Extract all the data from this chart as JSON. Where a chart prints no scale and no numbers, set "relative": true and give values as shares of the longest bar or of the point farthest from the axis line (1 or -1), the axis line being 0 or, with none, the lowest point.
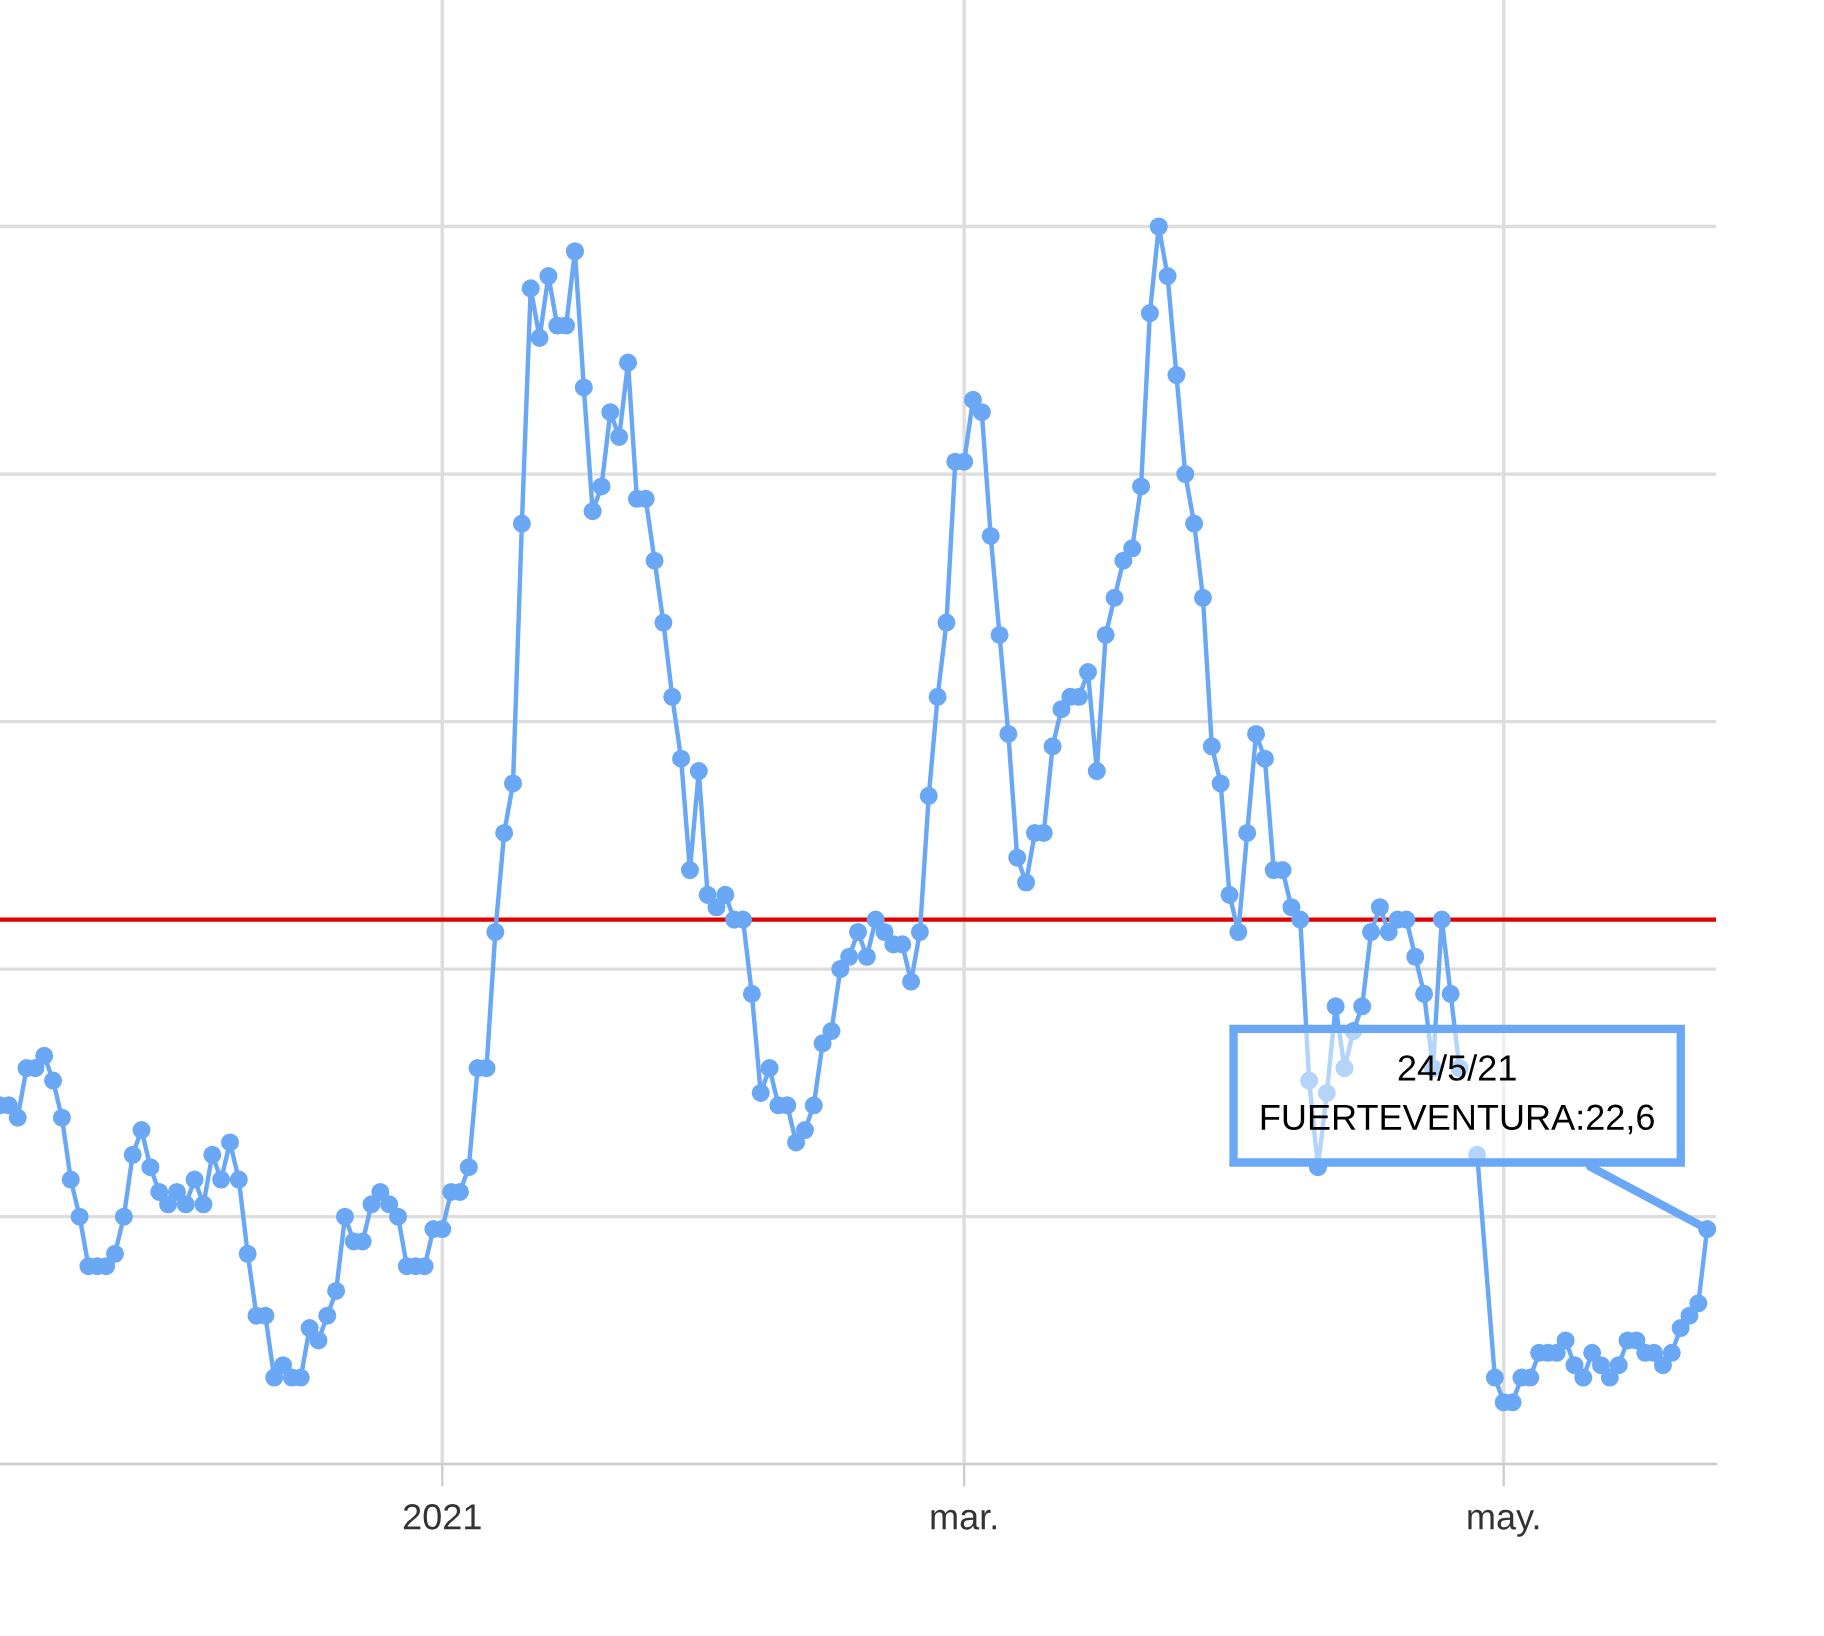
{
  "chart_data": {
    "type": "line",
    "relative": true,
    "x": [
      "2020-11-12",
      "2020-11-13",
      "2020-11-14",
      "2020-11-15",
      "2020-11-16",
      "2020-11-17",
      "2020-11-18",
      "2020-11-19",
      "2020-11-20",
      "2020-11-21",
      "2020-11-22",
      "2020-11-23",
      "2020-11-24",
      "2020-11-25",
      "2020-11-26",
      "2020-11-27",
      "2020-11-28",
      "2020-11-29",
      "2020-11-30",
      "2020-12-01",
      "2020-12-02",
      "2020-12-03",
      "2020-12-04",
      "2020-12-05",
      "2020-12-06",
      "2020-12-07",
      "2020-12-08",
      "2020-12-09",
      "2020-12-10",
      "2020-12-11",
      "2020-12-12",
      "2020-12-13",
      "2020-12-14",
      "2020-12-15",
      "2020-12-16",
      "2020-12-17",
      "2020-12-18",
      "2020-12-19",
      "2020-12-20",
      "2020-12-21",
      "2020-12-22",
      "2020-12-23",
      "2020-12-24",
      "2020-12-25",
      "2020-12-26",
      "2020-12-27",
      "2020-12-28",
      "2020-12-29",
      "2020-12-30",
      "2020-12-31",
      "2021-01-01",
      "2021-01-02",
      "2021-01-03",
      "2021-01-04",
      "2021-01-05",
      "2021-01-06",
      "2021-01-07",
      "2021-01-08",
      "2021-01-09",
      "2021-01-10",
      "2021-01-11",
      "2021-01-12",
      "2021-01-13",
      "2021-01-14",
      "2021-01-15",
      "2021-01-16",
      "2021-01-17",
      "2021-01-18",
      "2021-01-19",
      "2021-01-20",
      "2021-01-21",
      "2021-01-22",
      "2021-01-23",
      "2021-01-24",
      "2021-01-25",
      "2021-01-26",
      "2021-01-27",
      "2021-01-28",
      "2021-01-29",
      "2021-01-30",
      "2021-01-31",
      "2021-02-01",
      "2021-02-02",
      "2021-02-03",
      "2021-02-04",
      "2021-02-05",
      "2021-02-06",
      "2021-02-07",
      "2021-02-08",
      "2021-02-09",
      "2021-02-10",
      "2021-02-11",
      "2021-02-12",
      "2021-02-13",
      "2021-02-14",
      "2021-02-15",
      "2021-02-16",
      "2021-02-17",
      "2021-02-18",
      "2021-02-19",
      "2021-02-20",
      "2021-02-21",
      "2021-02-22",
      "2021-02-23",
      "2021-02-24",
      "2021-02-25",
      "2021-02-26",
      "2021-02-27",
      "2021-02-28",
      "2021-03-01",
      "2021-03-02",
      "2021-03-03",
      "2021-03-04",
      "2021-03-05",
      "2021-03-06",
      "2021-03-07",
      "2021-03-08",
      "2021-03-09",
      "2021-03-10",
      "2021-03-11",
      "2021-03-12",
      "2021-03-13",
      "2021-03-14",
      "2021-03-15",
      "2021-03-16",
      "2021-03-17",
      "2021-03-18",
      "2021-03-19",
      "2021-03-20",
      "2021-03-21",
      "2021-03-22",
      "2021-03-23",
      "2021-03-24",
      "2021-03-25",
      "2021-03-26",
      "2021-03-27",
      "2021-03-28",
      "2021-03-29",
      "2021-03-30",
      "2021-03-31",
      "2021-04-01",
      "2021-04-02",
      "2021-04-03",
      "2021-04-04",
      "2021-04-05",
      "2021-04-06",
      "2021-04-07",
      "2021-04-08",
      "2021-04-09",
      "2021-04-10",
      "2021-04-11",
      "2021-04-12",
      "2021-04-13",
      "2021-04-14",
      "2021-04-15",
      "2021-04-16",
      "2021-04-17",
      "2021-04-18",
      "2021-04-19",
      "2021-04-20",
      "2021-04-21",
      "2021-04-22",
      "2021-04-23",
      "2021-04-24",
      "2021-04-25",
      "2021-04-26",
      "2021-04-27",
      "2021-04-28",
      "2021-04-30",
      "2021-05-01",
      "2021-05-02",
      "2021-05-03",
      "2021-05-04",
      "2021-05-05",
      "2021-05-06",
      "2021-05-07",
      "2021-05-08",
      "2021-05-09",
      "2021-05-10",
      "2021-05-11",
      "2021-05-12",
      "2021-05-13",
      "2021-05-14",
      "2021-05-15",
      "2021-05-16",
      "2021-05-17",
      "2021-05-18",
      "2021-05-19",
      "2021-05-20",
      "2021-05-21",
      "2021-05-22",
      "2021-05-23",
      "2021-05-24"
    ],
    "series": [
      {
        "color": "#6aa8f5",
        "values": [
          0.29,
          0.29,
          0.28,
          0.32,
          0.32,
          0.33,
          0.31,
          0.28,
          0.23,
          0.2,
          0.16,
          0.16,
          0.16,
          0.17,
          0.2,
          0.25,
          0.27,
          0.24,
          0.22,
          0.21,
          0.22,
          0.21,
          0.23,
          0.21,
          0.25,
          0.23,
          0.26,
          0.23,
          0.17,
          0.12,
          0.12,
          0.07,
          0.08,
          0.07,
          0.07,
          0.11,
          0.1,
          0.12,
          0.14,
          0.2,
          0.18,
          0.18,
          0.21,
          0.22,
          0.21,
          0.2,
          0.16,
          0.16,
          0.16,
          0.19,
          0.19,
          0.22,
          0.22,
          0.24,
          0.32,
          0.32,
          0.43,
          0.51,
          0.55,
          0.76,
          0.95,
          0.91,
          0.96,
          0.92,
          0.92,
          0.98,
          0.87,
          0.77,
          0.79,
          0.85,
          0.83,
          0.89,
          0.78,
          0.78,
          0.73,
          0.68,
          0.62,
          0.57,
          0.48,
          0.56,
          0.46,
          0.45,
          0.46,
          0.44,
          0.44,
          0.38,
          0.3,
          0.32,
          0.29,
          0.29,
          0.26,
          0.27,
          0.29,
          0.34,
          0.35,
          0.4,
          0.41,
          0.43,
          0.41,
          0.44,
          0.43,
          0.42,
          0.42,
          0.39,
          0.43,
          0.54,
          0.62,
          0.68,
          0.81,
          0.81,
          0.86,
          0.85,
          0.75,
          0.67,
          0.59,
          0.49,
          0.47,
          0.51,
          0.51,
          0.58,
          0.61,
          0.62,
          0.62,
          0.64,
          0.56,
          0.67,
          0.7,
          0.73,
          0.74,
          0.79,
          0.93,
          1.0,
          0.96,
          0.88,
          0.8,
          0.76,
          0.7,
          0.58,
          0.55,
          0.46,
          0.43,
          0.51,
          0.59,
          0.57,
          0.48,
          0.48,
          0.45,
          0.44,
          0.31,
          0.24,
          0.3,
          0.37,
          0.32,
          0.35,
          0.37,
          0.43,
          0.45,
          0.43,
          0.44,
          0.44,
          0.41,
          0.38,
          0.32,
          0.44,
          0.38,
          0.32,
          null,
          0.25,
          0.07,
          0.05,
          0.05,
          0.07,
          0.07,
          0.09,
          0.09,
          0.09,
          0.1,
          0.08,
          0.07,
          0.09,
          0.08,
          0.07,
          0.08,
          0.1,
          0.1,
          0.09,
          0.09,
          0.08,
          0.09,
          0.11,
          0.12,
          0.13,
          0.19
        ]
      }
    ],
    "xlim": [
      "2020-11-12",
      "2021-05-25"
    ],
    "xticks": [
      {
        "value": "2021-01-01",
        "label": "2021"
      },
      {
        "value": "2021-03-01",
        "label": "mar."
      },
      {
        "value": "2021-05-01",
        "label": "may."
      }
    ],
    "ref_lines": [
      {
        "axis": "y",
        "value": 0.44,
        "color": "#e00000"
      }
    ],
    "annotations": [
      {
        "text": "24/5/21\nFUERTEVENTURA:22,6",
        "x": "2021-05-24",
        "y": 0.19
      }
    ],
    "grid": true,
    "marker": "circle",
    "line_style": "solid",
    "tick_labels": "x"
  }
}
